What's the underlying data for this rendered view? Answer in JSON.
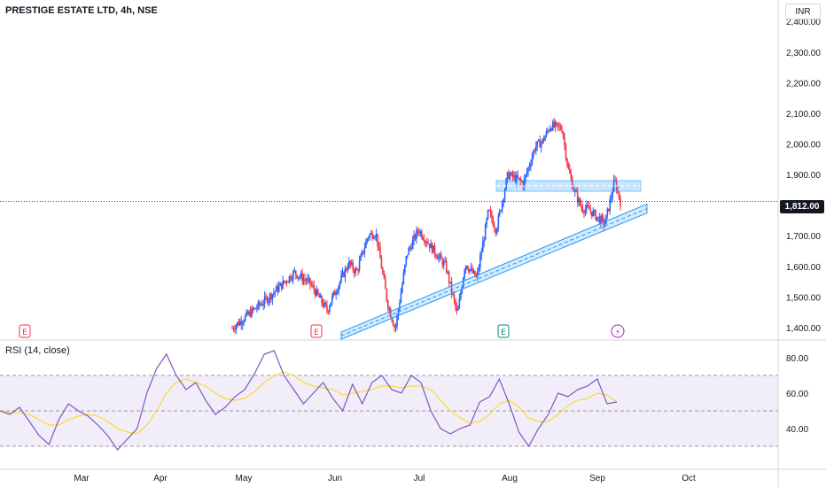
{
  "header": {
    "title": "PRESTIGE ESTATE LTD, 4h, NSE",
    "currency": "INR"
  },
  "price_badge": "1,812.00",
  "rsi_label": "RSI (14, close)",
  "event_markers": [
    {
      "label": "E",
      "month": "Feb-end",
      "type": "earnings"
    },
    {
      "label": "E",
      "month": "May-end",
      "type": "earnings"
    },
    {
      "label": "E",
      "month": "Aug",
      "type": "earnings"
    },
    {
      "label": "⚡",
      "month": "Sep",
      "type": "split"
    }
  ],
  "colors": {
    "up": "#2962ff",
    "down": "#f23645",
    "trend": "#2196f3",
    "rsi": "#7e57c2",
    "rsi_ma": "#fdd835"
  },
  "chart_data": [
    {
      "type": "candlestick",
      "title": "PRESTIGE ESTATE LTD, 4h, NSE",
      "y_ticks": [
        "2,400.00",
        "2,300.00",
        "2,200.00",
        "2,100.00",
        "2,000.00",
        "1,900.00",
        "1,800.00",
        "1,700.00",
        "1,600.00",
        "1,500.00",
        "1,400.00"
      ],
      "ylim": [
        1365,
        2470
      ],
      "x_ticks": [
        "Mar",
        "Apr",
        "May",
        "Jun",
        "Jul",
        "Aug",
        "Sep",
        "Oct"
      ],
      "last_price": 1812,
      "trend_points": [
        [
          0.0,
          1398
        ],
        [
          0.095,
          1500
        ],
        [
          0.16,
          1580
        ],
        [
          0.2,
          1545
        ],
        [
          0.245,
          1455
        ],
        [
          0.255,
          1490
        ],
        [
          0.3,
          1610
        ],
        [
          0.32,
          1580
        ],
        [
          0.35,
          1700
        ],
        [
          0.37,
          1710
        ],
        [
          0.4,
          1480
        ],
        [
          0.42,
          1395
        ],
        [
          0.45,
          1640
        ],
        [
          0.48,
          1720
        ],
        [
          0.52,
          1650
        ],
        [
          0.55,
          1600
        ],
        [
          0.58,
          1440
        ],
        [
          0.6,
          1610
        ],
        [
          0.63,
          1560
        ],
        [
          0.66,
          1780
        ],
        [
          0.68,
          1720
        ],
        [
          0.71,
          1900
        ],
        [
          0.74,
          1880
        ],
        [
          0.75,
          1870
        ],
        [
          0.78,
          1990
        ],
        [
          0.8,
          2010
        ],
        [
          0.82,
          2060
        ],
        [
          0.85,
          2050
        ],
        [
          0.865,
          1920
        ],
        [
          0.88,
          1850
        ],
        [
          0.9,
          1790
        ],
        [
          0.92,
          1785
        ],
        [
          0.94,
          1760
        ],
        [
          0.96,
          1740
        ],
        [
          0.975,
          1820
        ],
        [
          0.985,
          1880
        ],
        [
          1.0,
          1812
        ]
      ],
      "resistance_zone": [
        1845,
        1880
      ],
      "support_line": {
        "from": [
          0.45,
          1385
        ],
        "to": [
          1.0,
          1780
        ]
      }
    },
    {
      "type": "line",
      "title": "RSI (14, close)",
      "y_ticks": [
        "80.00",
        "60.00",
        "40.00"
      ],
      "ylim": [
        18,
        90
      ],
      "band": [
        30,
        70
      ],
      "series": [
        {
          "values": [
            50,
            48,
            52,
            44,
            36,
            31,
            45,
            54,
            50,
            47,
            42,
            36,
            28,
            34,
            40,
            60,
            74,
            82,
            70,
            62,
            66,
            56,
            48,
            52,
            58,
            62,
            71,
            82,
            84,
            70,
            62,
            54,
            60,
            66,
            57,
            50,
            65,
            54,
            66,
            70,
            62,
            60,
            70,
            66,
            50,
            40,
            37,
            40,
            42,
            55,
            58,
            68,
            54,
            38,
            30,
            40,
            48,
            60,
            58,
            62,
            64,
            68,
            54,
            55
          ]
        },
        {
          "values": [
            50,
            49,
            49,
            48,
            45,
            42,
            42,
            45,
            47,
            48,
            47,
            44,
            40,
            38,
            37,
            42,
            50,
            60,
            66,
            68,
            66,
            64,
            60,
            57,
            56,
            57,
            61,
            66,
            70,
            72,
            70,
            66,
            64,
            63,
            62,
            59,
            60,
            61,
            62,
            64,
            64,
            63,
            64,
            64,
            62,
            56,
            50,
            46,
            43,
            44,
            48,
            54,
            56,
            52,
            46,
            44,
            44,
            48,
            53,
            56,
            57,
            60,
            59,
            55
          ]
        }
      ]
    }
  ]
}
